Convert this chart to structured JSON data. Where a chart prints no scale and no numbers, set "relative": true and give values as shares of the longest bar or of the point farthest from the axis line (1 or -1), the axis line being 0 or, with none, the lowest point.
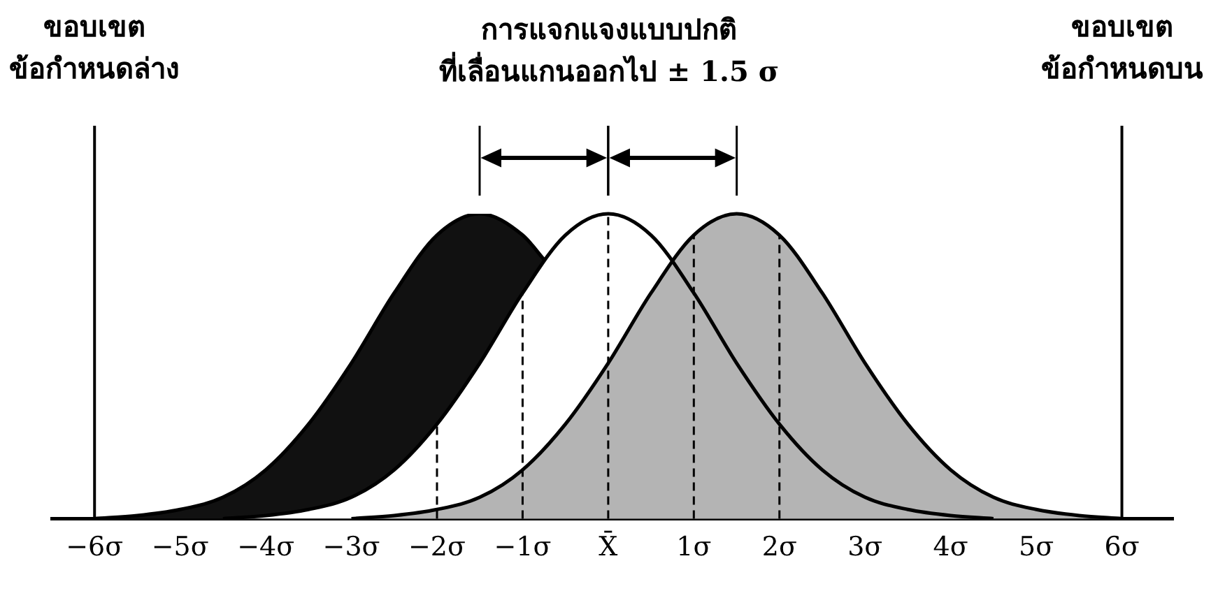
{
  "chart_data": {
    "type": "area",
    "title": "การแจกแจงแบบปกติ\nที่เลื่อนแกนออกไป ± 1.5 σ",
    "relative": true,
    "legend": false,
    "grid": false,
    "marker": "none",
    "line_style": "solid",
    "xlim": [
      -6.5,
      6.6
    ],
    "xticks": [
      {
        "value": -6,
        "label": "−6σ"
      },
      {
        "value": -5,
        "label": "−5σ"
      },
      {
        "value": -4,
        "label": "−4σ"
      },
      {
        "value": -3,
        "label": "−3σ"
      },
      {
        "value": -2,
        "label": "−2σ"
      },
      {
        "value": -1,
        "label": "−1σ"
      },
      {
        "value": 0,
        "label": "X̄"
      },
      {
        "value": 1,
        "label": "1σ"
      },
      {
        "value": 2,
        "label": "2σ"
      },
      {
        "value": 3,
        "label": "3σ"
      },
      {
        "value": 4,
        "label": "4σ"
      },
      {
        "value": 5,
        "label": "5σ"
      },
      {
        "value": 6,
        "label": "6σ"
      }
    ],
    "series": [
      {
        "color": "#111111",
        "x": [
          -6,
          -5.5,
          -5,
          -4.5,
          -4,
          -3.5,
          -3,
          -2.5,
          -2,
          -1.5,
          -1,
          -0.75
        ],
        "values": [
          0,
          0.01,
          0.03,
          0.07,
          0.16,
          0.31,
          0.51,
          0.74,
          0.93,
          1,
          0.93,
          0.85
        ]
      },
      {
        "color": "#ffffff",
        "x": [
          -4.5,
          -4,
          -3.5,
          -3,
          -2.5,
          -2,
          -1.5,
          -1,
          -0.5,
          0,
          0.5,
          1,
          1.5,
          2,
          2.5,
          3,
          3.5,
          4,
          4.5
        ],
        "values": [
          0,
          0.01,
          0.03,
          0.07,
          0.16,
          0.31,
          0.51,
          0.74,
          0.93,
          1,
          0.93,
          0.74,
          0.51,
          0.31,
          0.16,
          0.07,
          0.03,
          0.01,
          0
        ]
      },
      {
        "color": "#b4b4b4",
        "x": [
          -3,
          -2.5,
          -2,
          -1.5,
          -1,
          -0.5,
          0,
          0.5,
          1,
          1.5,
          2,
          2.5,
          3,
          3.5,
          4,
          4.5,
          5,
          5.5,
          6
        ],
        "values": [
          0,
          0.01,
          0.03,
          0.07,
          0.16,
          0.31,
          0.51,
          0.74,
          0.93,
          1,
          0.93,
          0.74,
          0.51,
          0.31,
          0.16,
          0.07,
          0.03,
          0.01,
          0
        ]
      }
    ],
    "ref_lines": [
      {
        "axis": "x",
        "value": -6,
        "label": "ขอบเขต\nข้อกำหนดล่าง",
        "line_style": "solid"
      },
      {
        "axis": "x",
        "value": 6,
        "label": "ขอบเขต\nข้อกำหนดบน",
        "line_style": "solid"
      },
      {
        "axis": "x",
        "value": -2,
        "line_style": "dashed"
      },
      {
        "axis": "x",
        "value": -1,
        "line_style": "dashed"
      },
      {
        "axis": "x",
        "value": 0,
        "line_style": "dashed"
      },
      {
        "axis": "x",
        "value": 1,
        "line_style": "dashed"
      },
      {
        "axis": "x",
        "value": 2,
        "line_style": "dashed"
      }
    ]
  }
}
